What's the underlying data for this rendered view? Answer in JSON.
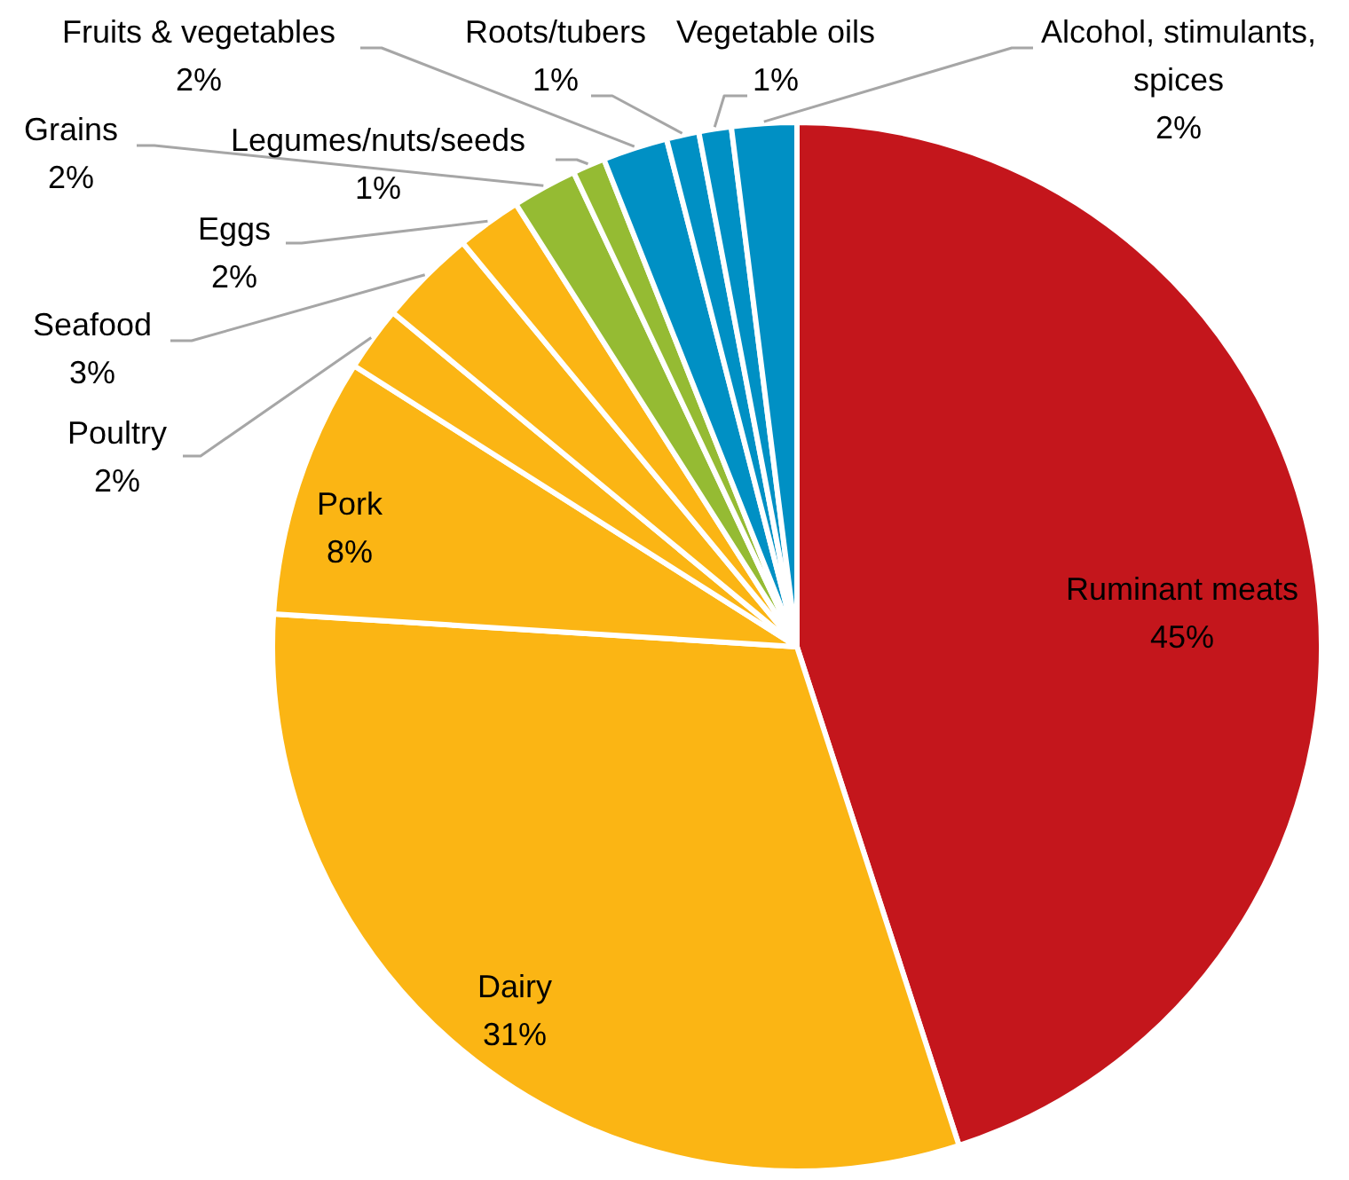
{
  "chart_data": {
    "type": "pie",
    "categories": [
      "Ruminant meats",
      "Dairy",
      "Pork",
      "Poultry",
      "Seafood",
      "Eggs",
      "Grains",
      "Legumes/nuts/seeds",
      "Fruits & vegetables",
      "Roots/tubers",
      "Vegetable oils",
      "Alcohol, stimulants, spices"
    ],
    "values": [
      45,
      31,
      8,
      2,
      3,
      2,
      2,
      1,
      2,
      1,
      1,
      2
    ],
    "value_labels": [
      "45%",
      "31%",
      "8%",
      "2%",
      "3%",
      "2%",
      "2%",
      "1%",
      "2%",
      "1%",
      "1%",
      "2%"
    ],
    "colors": [
      "#c4161c",
      "#fbb514",
      "#fbb514",
      "#fbb514",
      "#fbb514",
      "#fbb514",
      "#95bb33",
      "#95bb33",
      "#0090c4",
      "#0090c4",
      "#0090c4",
      "#0090c4"
    ],
    "legend": false
  }
}
